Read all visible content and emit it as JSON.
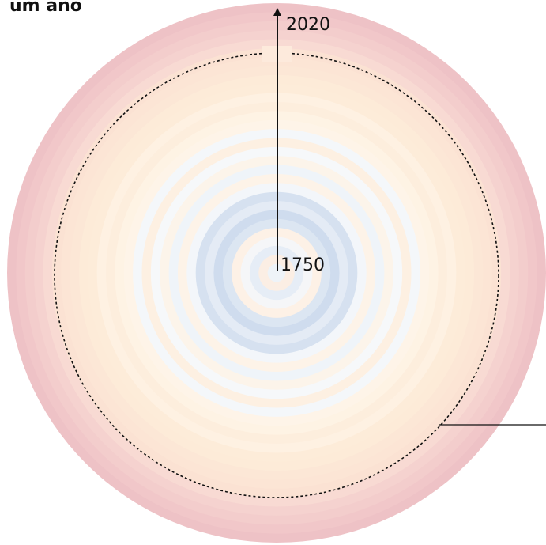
{
  "title": "um ano",
  "labels": {
    "end": "2020",
    "start": "1750"
  },
  "rings": [
    "#eef3f8",
    "#fbeee4",
    "#e6edf6",
    "#f5f6f8",
    "#fdf1e6",
    "#dce6f2",
    "#cfdcee",
    "#e4ebf5",
    "#d6e1f0",
    "#f3f6fa",
    "#fdf3e8",
    "#eff4f9",
    "#fcf4ea",
    "#f6f8fa",
    "#fdf0e2",
    "#f4f7fa",
    "#fef4e8",
    "#fef3e4",
    "#fdeedd",
    "#fef1e2",
    "#fdecd9",
    "#fdebd8",
    "#fce7d6",
    "#fce5d5",
    "#fbe2d3",
    "#f8dad3",
    "#f5d2cf",
    "#f3cdcc",
    "#f1c7c9",
    "#eec2c6"
  ]
}
